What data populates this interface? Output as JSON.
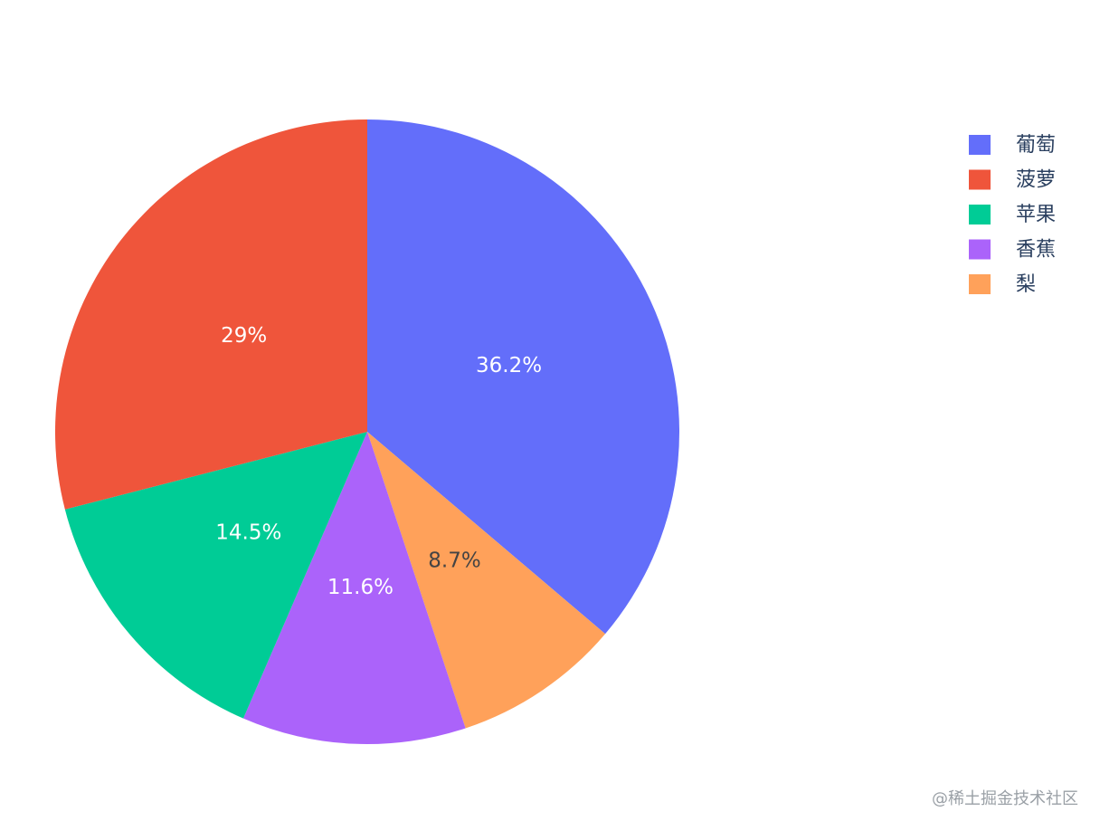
{
  "chart_data": {
    "type": "pie",
    "categories": [
      "葡萄",
      "菠萝",
      "苹果",
      "香蕉",
      "梨"
    ],
    "values": [
      36.2,
      29,
      14.5,
      11.6,
      8.7
    ],
    "value_labels": [
      "36.2%",
      "29%",
      "14.5%",
      "11.6%",
      "8.7%"
    ],
    "colors": [
      "#636efa",
      "#ef553b",
      "#00cc96",
      "#ab63fa",
      "#ffa15a"
    ],
    "legend": "top-right"
  },
  "watermark": "@稀土掘金技术社区"
}
